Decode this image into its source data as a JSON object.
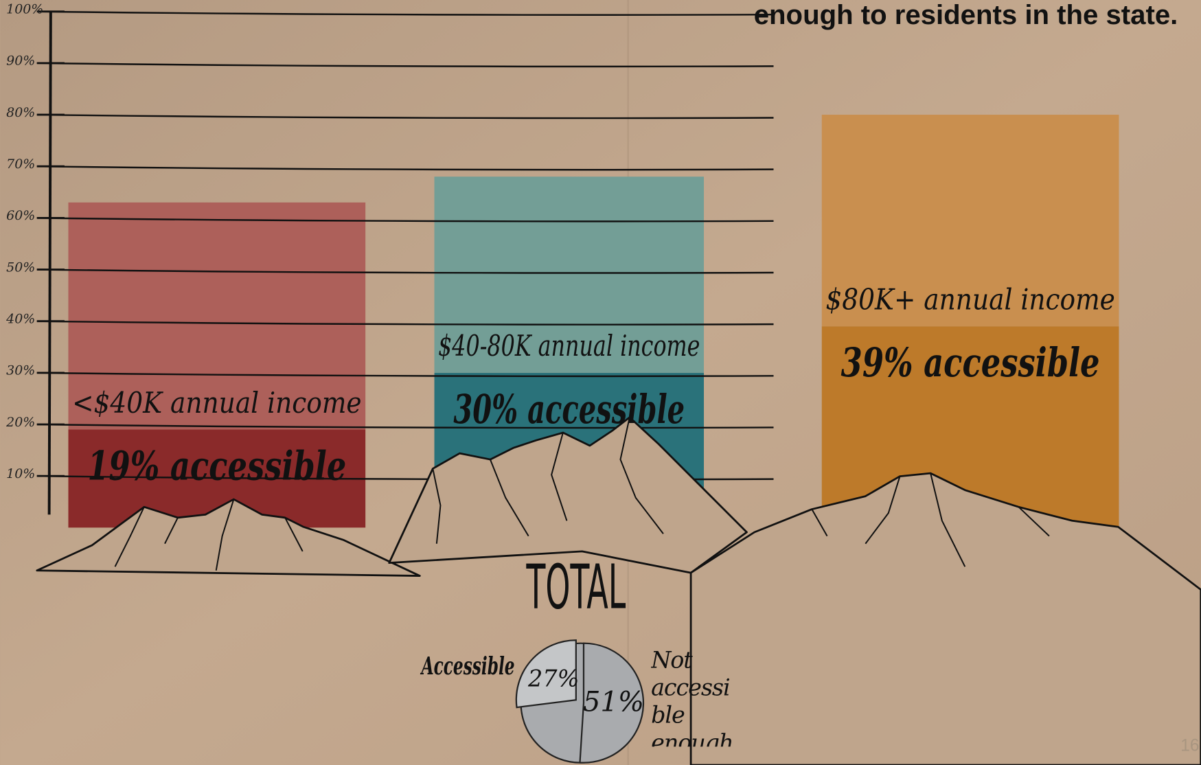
{
  "title": "enough to residents in the state.",
  "page_number": "16",
  "chart_data": [
    {
      "type": "bar",
      "categories": [
        "<$40K annual income",
        "$40-80K annual income",
        "$80K+ annual income"
      ],
      "series": [
        {
          "values": [
            19,
            30,
            39
          ],
          "value_labels": [
            "19% accessible",
            "30% accessible",
            "39% accessible"
          ],
          "colors": [
            "#8a2a2a",
            "#2a727a",
            "#bd7a2a"
          ]
        },
        {
          "values": [
            44,
            38,
            41
          ],
          "colors": [
            "#ad605a",
            "#739e96",
            "#c98f4f"
          ]
        }
      ],
      "ylim": [
        0,
        100
      ],
      "yticks": [
        {
          "value": 10,
          "label": "10%"
        },
        {
          "value": 20,
          "label": "20%"
        },
        {
          "value": 30,
          "label": "30%"
        },
        {
          "value": 40,
          "label": "40%"
        },
        {
          "value": 50,
          "label": "50%"
        },
        {
          "value": 60,
          "label": "60%"
        },
        {
          "value": 70,
          "label": "70%"
        },
        {
          "value": 80,
          "label": "80%"
        },
        {
          "value": 90,
          "label": "90%"
        },
        {
          "value": 100,
          "label": "100%"
        }
      ],
      "grid": true
    },
    {
      "type": "pie",
      "title": "TOTAL",
      "categories": [
        "Accessible",
        "Not accessible enough"
      ],
      "values": [
        27,
        51
      ],
      "value_labels": [
        "27%",
        "51%"
      ],
      "colors": [
        "#c4c6c8",
        "#a9abae"
      ]
    }
  ]
}
